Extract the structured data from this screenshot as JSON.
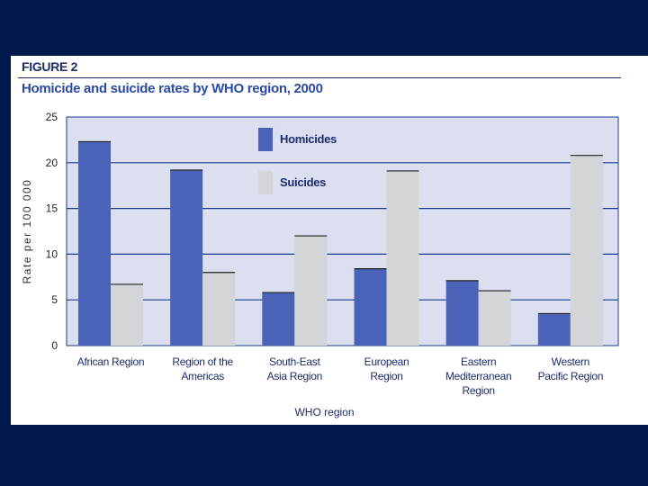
{
  "figure_label": "FIGURE 2",
  "chart_data": {
    "type": "bar",
    "title": "Homicide and suicide rates by WHO region, 2000",
    "xlabel": "WHO region",
    "ylabel": "Rate per 100 000",
    "ylim": [
      0,
      25
    ],
    "yticks": [
      0,
      5,
      10,
      15,
      20,
      25
    ],
    "grid": true,
    "legend_position": "top-center",
    "categories": [
      [
        "African Region"
      ],
      [
        "Region of the",
        "Americas"
      ],
      [
        "South-East",
        "Asia Region"
      ],
      [
        "European",
        "Region"
      ],
      [
        "Eastern",
        "Mediterranean",
        "Region"
      ],
      [
        "Western",
        "Pacific Region"
      ]
    ],
    "series": [
      {
        "name": "Homicides",
        "color": "#4a63b8",
        "values": [
          22.3,
          19.2,
          5.8,
          8.4,
          7.1,
          3.5
        ]
      },
      {
        "name": "Suicides",
        "color": "#d3d6d8",
        "values": [
          6.7,
          8.0,
          12.0,
          19.1,
          6.0,
          20.8
        ]
      }
    ],
    "plot_background": "#dcdff0",
    "gridline_color": "#1c3a8c"
  }
}
